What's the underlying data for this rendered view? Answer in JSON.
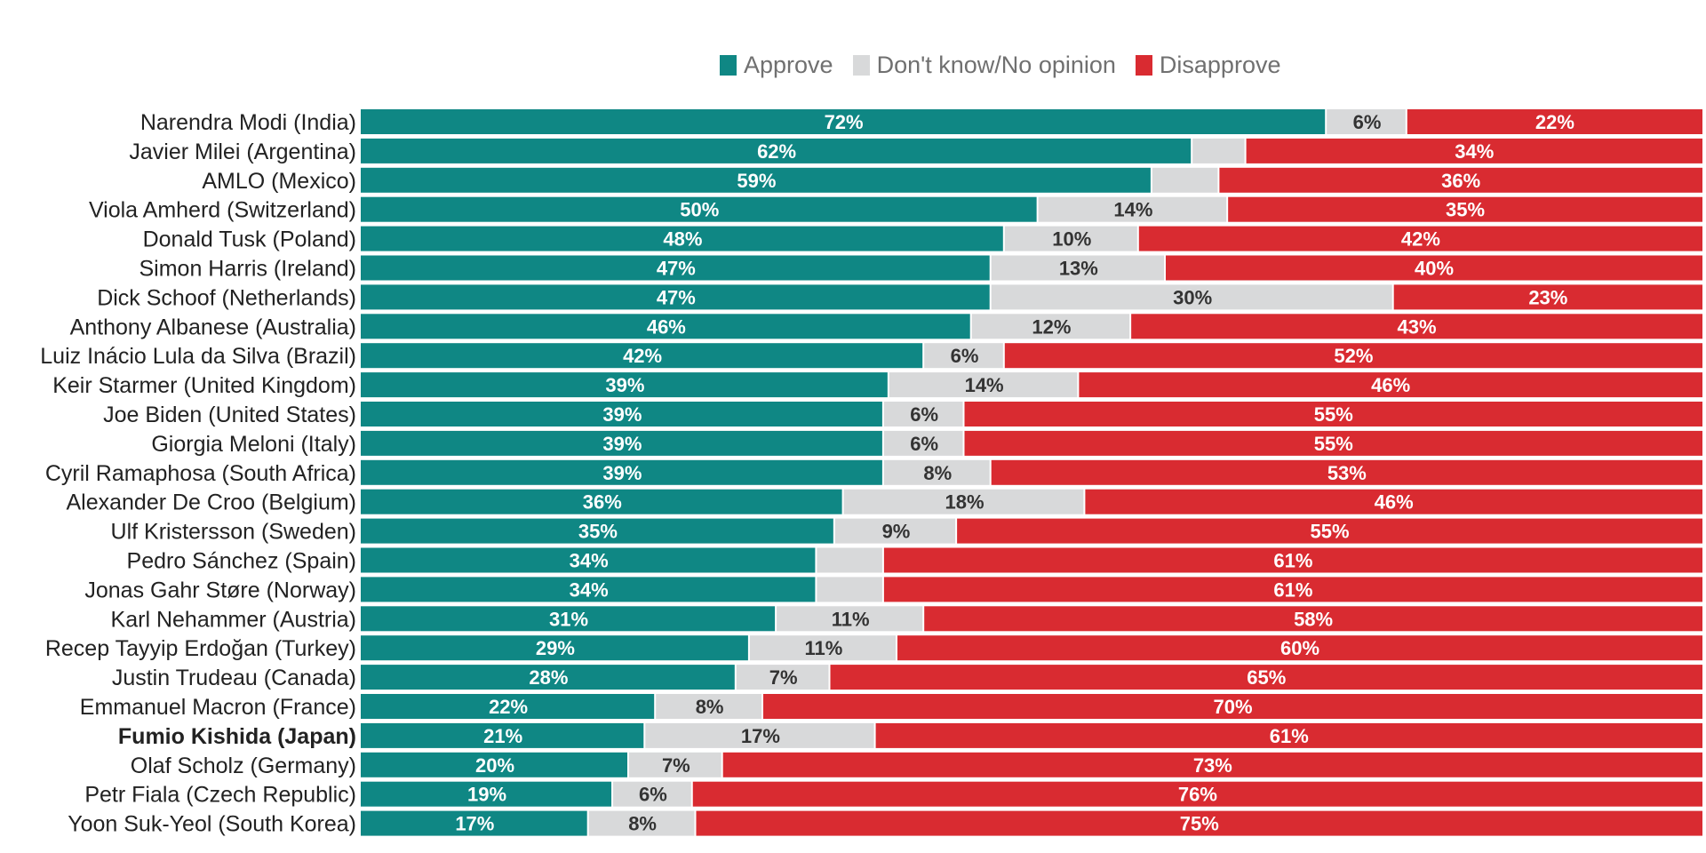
{
  "legend": {
    "approve_label": "Approve",
    "dontknow_label": "Don't know/No opinion",
    "disapprove_label": "Disapprove"
  },
  "colors": {
    "approve": "#0f8784",
    "dontknow": "#d8d9da",
    "disapprove": "#d92b31",
    "approve_text": "#ffffff",
    "dontknow_text": "#333333",
    "disapprove_text": "#ffffff",
    "label_text": "#222222"
  },
  "chart_data": {
    "type": "bar",
    "orientation": "horizontal",
    "stacked": true,
    "percent_scale": true,
    "series": [
      {
        "name": "Approve"
      },
      {
        "name": "Don't know/No opinion"
      },
      {
        "name": "Disapprove"
      }
    ],
    "rows": [
      {
        "label": "Narendra Modi (India)",
        "approve": 72,
        "dontknow": 6,
        "disapprove": 22,
        "show_dk": true
      },
      {
        "label": "Javier Milei (Argentina)",
        "approve": 62,
        "dontknow": 4,
        "disapprove": 34,
        "show_dk": false
      },
      {
        "label": "AMLO (Mexico)",
        "approve": 59,
        "dontknow": 5,
        "disapprove": 36,
        "show_dk": false
      },
      {
        "label": "Viola Amherd (Switzerland)",
        "approve": 50,
        "dontknow": 14,
        "disapprove": 35,
        "show_dk": true
      },
      {
        "label": "Donald Tusk (Poland)",
        "approve": 48,
        "dontknow": 10,
        "disapprove": 42,
        "show_dk": true
      },
      {
        "label": "Simon Harris (Ireland)",
        "approve": 47,
        "dontknow": 13,
        "disapprove": 40,
        "show_dk": true
      },
      {
        "label": "Dick Schoof (Netherlands)",
        "approve": 47,
        "dontknow": 30,
        "disapprove": 23,
        "show_dk": true
      },
      {
        "label": "Anthony Albanese (Australia)",
        "approve": 46,
        "dontknow": 12,
        "disapprove": 43,
        "show_dk": true
      },
      {
        "label": "Luiz Inácio Lula da Silva (Brazil)",
        "approve": 42,
        "dontknow": 6,
        "disapprove": 52,
        "show_dk": true
      },
      {
        "label": "Keir Starmer (United Kingdom)",
        "approve": 39,
        "dontknow": 14,
        "disapprove": 46,
        "show_dk": true
      },
      {
        "label": "Joe Biden (United States)",
        "approve": 39,
        "dontknow": 6,
        "disapprove": 55,
        "show_dk": true
      },
      {
        "label": "Giorgia Meloni (Italy)",
        "approve": 39,
        "dontknow": 6,
        "disapprove": 55,
        "show_dk": true
      },
      {
        "label": "Cyril Ramaphosa (South Africa)",
        "approve": 39,
        "dontknow": 8,
        "disapprove": 53,
        "show_dk": true
      },
      {
        "label": "Alexander De Croo (Belgium)",
        "approve": 36,
        "dontknow": 18,
        "disapprove": 46,
        "show_dk": true
      },
      {
        "label": "Ulf Kristersson (Sweden)",
        "approve": 35,
        "dontknow": 9,
        "disapprove": 55,
        "show_dk": true
      },
      {
        "label": "Pedro Sánchez (Spain)",
        "approve": 34,
        "dontknow": 5,
        "disapprove": 61,
        "show_dk": false
      },
      {
        "label": "Jonas Gahr Støre (Norway)",
        "approve": 34,
        "dontknow": 5,
        "disapprove": 61,
        "show_dk": false
      },
      {
        "label": "Karl Nehammer (Austria)",
        "approve": 31,
        "dontknow": 11,
        "disapprove": 58,
        "show_dk": true
      },
      {
        "label": "Recep Tayyip Erdoğan (Turkey)",
        "approve": 29,
        "dontknow": 11,
        "disapprove": 60,
        "show_dk": true
      },
      {
        "label": "Justin Trudeau (Canada)",
        "approve": 28,
        "dontknow": 7,
        "disapprove": 65,
        "show_dk": true
      },
      {
        "label": "Emmanuel Macron (France)",
        "approve": 22,
        "dontknow": 8,
        "disapprove": 70,
        "show_dk": true
      },
      {
        "label": "Fumio Kishida (Japan)",
        "approve": 21,
        "dontknow": 17,
        "disapprove": 61,
        "show_dk": true,
        "bold": true
      },
      {
        "label": "Olaf Scholz (Germany)",
        "approve": 20,
        "dontknow": 7,
        "disapprove": 73,
        "show_dk": true
      },
      {
        "label": "Petr Fiala (Czech Republic)",
        "approve": 19,
        "dontknow": 6,
        "disapprove": 76,
        "show_dk": true
      },
      {
        "label": "Yoon Suk-Yeol (South Korea)",
        "approve": 17,
        "dontknow": 8,
        "disapprove": 75,
        "show_dk": true
      }
    ]
  }
}
